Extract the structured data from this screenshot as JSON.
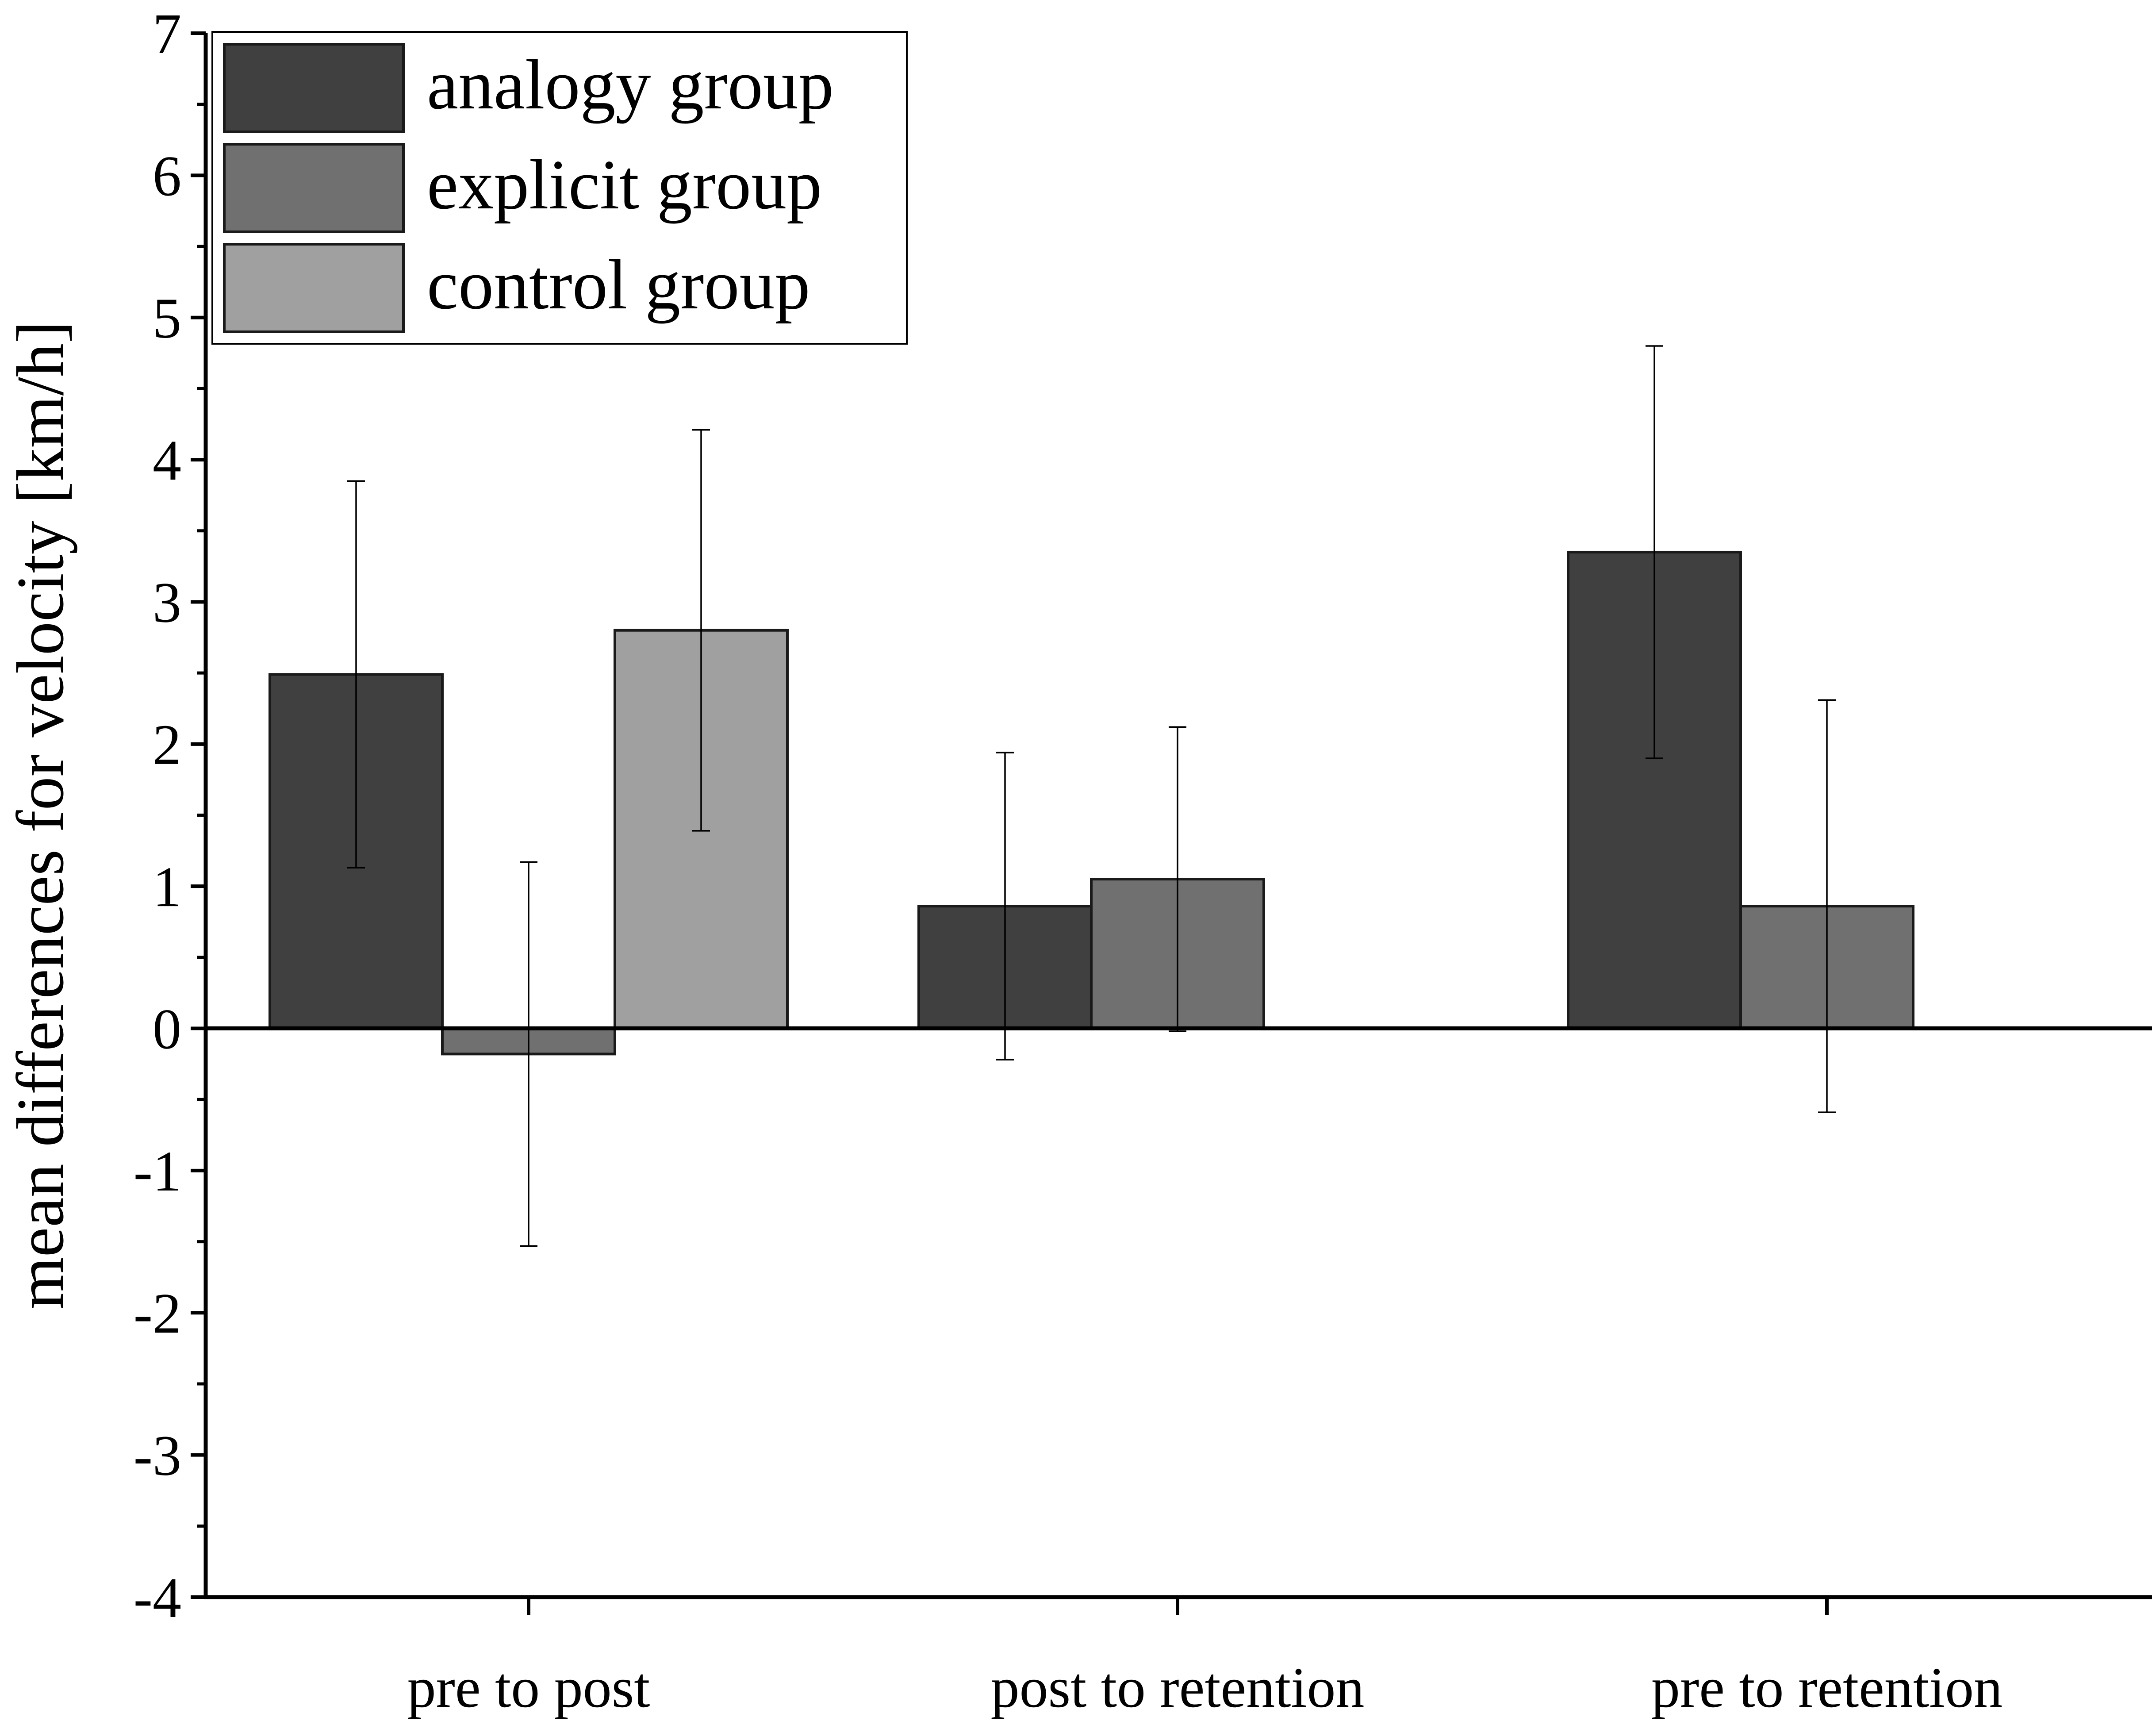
{
  "chart_data": {
    "type": "bar",
    "title": "",
    "xlabel": "",
    "ylabel": "mean differences for velocity [km/h]",
    "ylim": [
      -4,
      7
    ],
    "yticks": [
      -4,
      -3,
      -2,
      -1,
      0,
      1,
      2,
      3,
      4,
      5,
      6,
      7
    ],
    "ytick_labels": [
      "-4",
      "-3",
      "-2",
      "-1",
      "0",
      "1",
      "2",
      "3",
      "4",
      "5",
      "6",
      "7"
    ],
    "categories": [
      "pre to post",
      "post to retention",
      "pre to retention"
    ],
    "legend_position": "top-left",
    "series": [
      {
        "name": "analogy group",
        "color": "#404040",
        "values": [
          2.49,
          0.86,
          3.35
        ],
        "error": [
          1.36,
          1.08,
          1.45
        ]
      },
      {
        "name": "explicit group",
        "color": "#707070",
        "values": [
          -0.18,
          1.05,
          0.86
        ],
        "error": [
          1.35,
          1.07,
          1.45
        ]
      },
      {
        "name": "control group",
        "color": "#a0a0a0",
        "values": [
          2.8,
          null,
          null
        ],
        "error": [
          1.41,
          null,
          null
        ]
      }
    ]
  }
}
